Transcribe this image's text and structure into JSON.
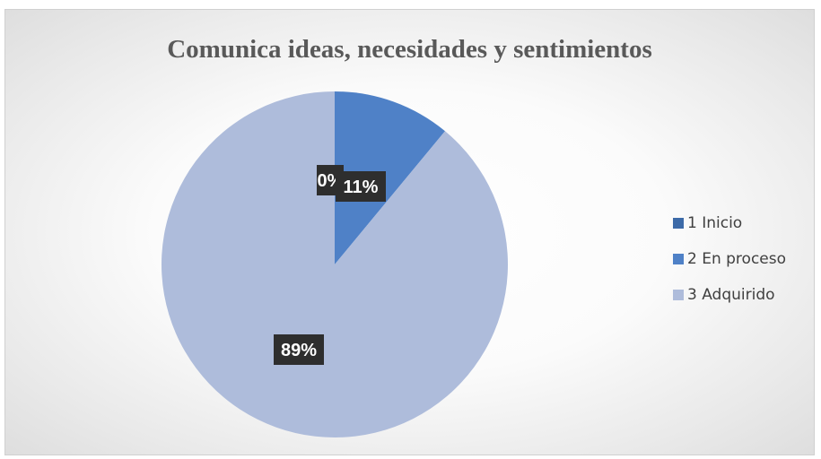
{
  "chart_data": {
    "type": "pie",
    "title": "Comunica ideas, necesidades y sentimientos",
    "categories": [
      "1 Inicio",
      "2 En proceso",
      "3 Adquirido"
    ],
    "values": [
      0,
      11,
      89
    ],
    "data_labels": [
      "0%",
      "11%",
      "89%"
    ],
    "colors": [
      "#3c6aa8",
      "#4f81c7",
      "#aebcdb"
    ],
    "legend": "right"
  }
}
